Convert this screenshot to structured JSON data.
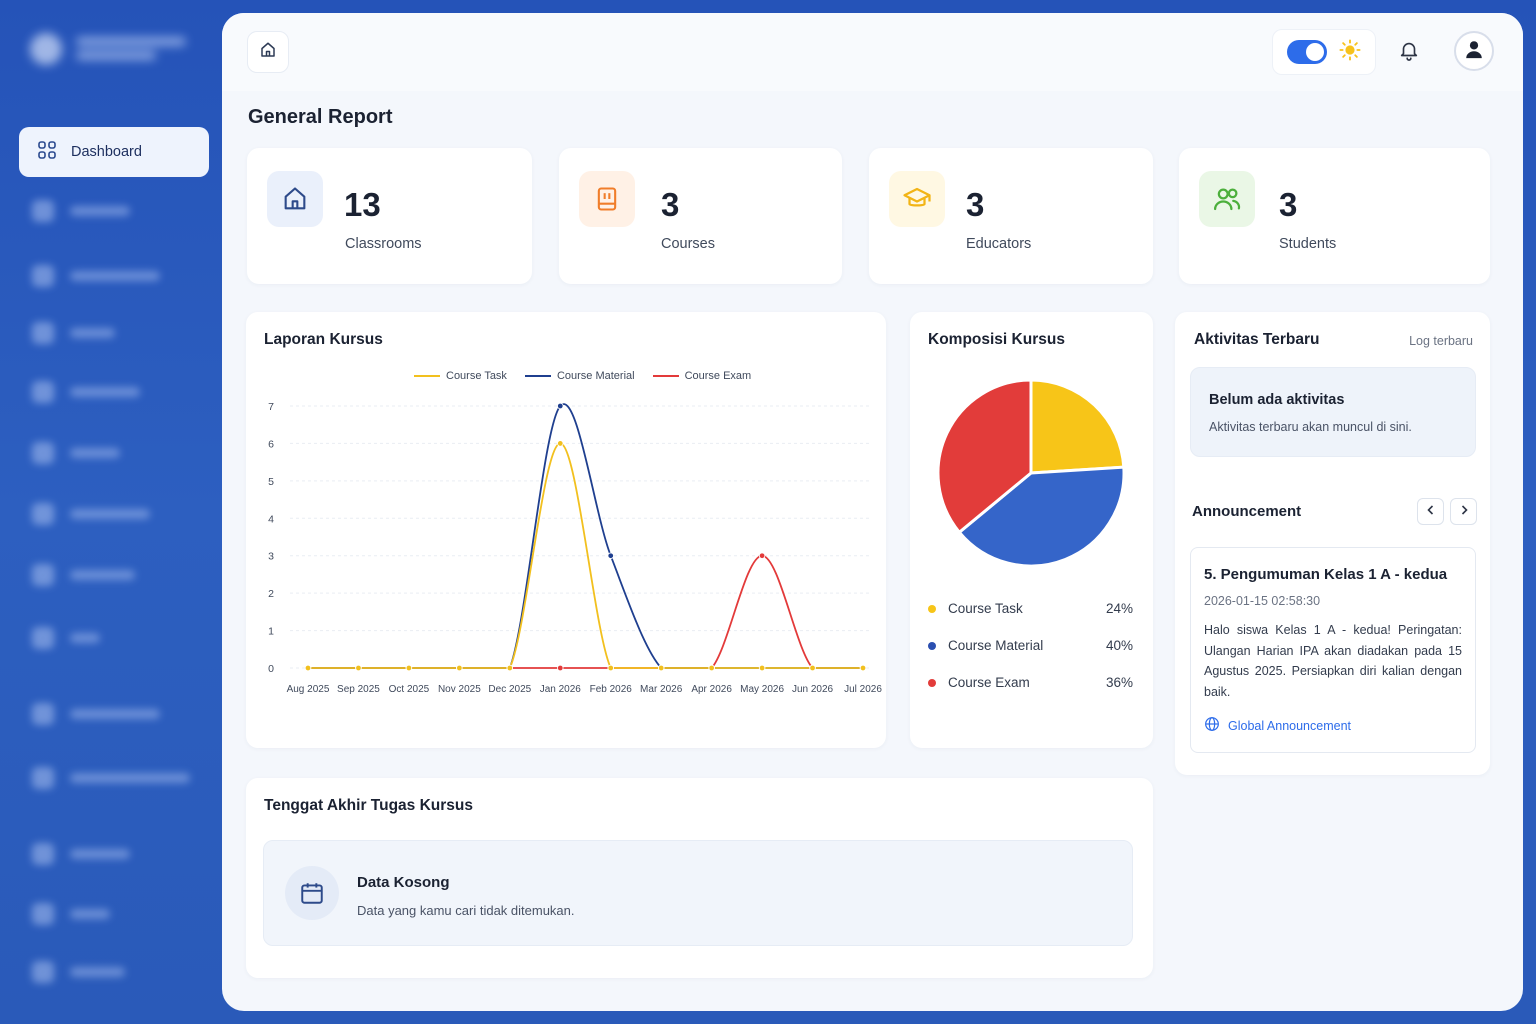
{
  "sidebar": {
    "active_item": {
      "label": "Dashboard",
      "icon": "grid-icon"
    }
  },
  "header": {
    "home_icon": "home-icon",
    "theme_toggle": {
      "state": "on",
      "icon": "sun-icon"
    },
    "bell_icon": "bell-icon",
    "avatar_icon": "user-icon"
  },
  "page": {
    "title": "General Report"
  },
  "stats": [
    {
      "value": "13",
      "label": "Classrooms",
      "icon": "home-icon",
      "color": "#2d4a8a",
      "bg": "#eaf0fb"
    },
    {
      "value": "3",
      "label": "Courses",
      "icon": "book-icon",
      "color": "#f07d2a",
      "bg": "#fff1e6"
    },
    {
      "value": "3",
      "label": "Educators",
      "icon": "graduation-cap-icon",
      "color": "#f2b416",
      "bg": "#fff8e3"
    },
    {
      "value": "3",
      "label": "Students",
      "icon": "users-icon",
      "color": "#4caf3c",
      "bg": "#eaf7e6"
    }
  ],
  "line_chart": {
    "title": "Laporan Kursus",
    "chart_data": {
      "type": "line",
      "x": [
        "Aug 2025",
        "Sep 2025",
        "Oct 2025",
        "Nov 2025",
        "Dec 2025",
        "Jan 2026",
        "Feb 2026",
        "Mar 2026",
        "Apr 2026",
        "May 2026",
        "Jun 2026",
        "Jul 2026"
      ],
      "series": [
        {
          "name": "Course Task",
          "color": "#f2c01e",
          "values": [
            0,
            0,
            0,
            0,
            0,
            6,
            0,
            0,
            0,
            0,
            0,
            0
          ]
        },
        {
          "name": "Course Material",
          "color": "#1f3f8f",
          "values": [
            0,
            0,
            0,
            0,
            0,
            7,
            3,
            0,
            0,
            0,
            0,
            0
          ]
        },
        {
          "name": "Course Exam",
          "color": "#e33a3a",
          "values": [
            0,
            0,
            0,
            0,
            0,
            0,
            0,
            0,
            0,
            3,
            0,
            0
          ]
        }
      ],
      "ylim": [
        0,
        7
      ],
      "yticks": [
        "0",
        "1",
        "2",
        "3",
        "4",
        "5",
        "6",
        "7"
      ],
      "grid": true,
      "legend": "top-center"
    }
  },
  "pie_chart": {
    "title": "Komposisi Kursus",
    "chart_data": {
      "type": "pie",
      "slices": [
        {
          "label": "Course Task",
          "value": 24,
          "pct_label": "24%",
          "color": "#f7c518"
        },
        {
          "label": "Course Material",
          "value": 40,
          "pct_label": "40%",
          "color": "#3565c9"
        },
        {
          "label": "Course Exam",
          "value": 36,
          "pct_label": "36%",
          "color": "#e23c3a"
        }
      ],
      "legend": "bottom"
    }
  },
  "activity": {
    "title": "Aktivitas Terbaru",
    "link": "Log terbaru",
    "empty_title": "Belum ada aktivitas",
    "empty_text": "Aktivitas terbaru akan muncul di sini."
  },
  "announcement": {
    "title": "Announcement",
    "item_title": "5. Pengumuman Kelas 1 A - kedua",
    "item_date": "2026-01-15 02:58:30",
    "item_body": "Halo siswa Kelas 1 A - kedua! Peringatan: Ulangan Harian IPA akan diadakan pada 15 Agustus 2025. Persiapkan diri kalian dengan baik.",
    "item_tag": "Global Announcement"
  },
  "deadline": {
    "title": "Tenggat Akhir Tugas Kursus",
    "empty_title": "Data Kosong",
    "empty_text": "Data yang kamu cari tidak ditemukan."
  }
}
